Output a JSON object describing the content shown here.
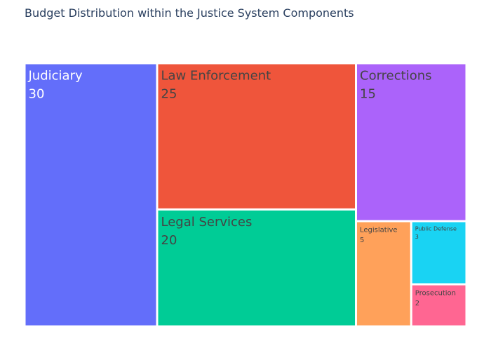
{
  "chart_data": {
    "type": "treemap",
    "title": "Budget Distribution within the Justice System Components",
    "items": [
      {
        "label": "Judiciary",
        "value": 30,
        "color": "#636efa",
        "text_color": "#ffffff"
      },
      {
        "label": "Law Enforcement",
        "value": 25,
        "color": "#ef553b",
        "text_color": "#444444"
      },
      {
        "label": "Legal Services",
        "value": 20,
        "color": "#00cc96",
        "text_color": "#444444"
      },
      {
        "label": "Corrections",
        "value": 15,
        "color": "#ab63fa",
        "text_color": "#444444"
      },
      {
        "label": "Legislative",
        "value": 5,
        "color": "#ffa15a",
        "text_color": "#444444"
      },
      {
        "label": "Public Defense",
        "value": 3,
        "color": "#19d3f3",
        "text_color": "#444444"
      },
      {
        "label": "Prosecution",
        "value": 2,
        "color": "#ff6692",
        "text_color": "#444444"
      }
    ]
  }
}
